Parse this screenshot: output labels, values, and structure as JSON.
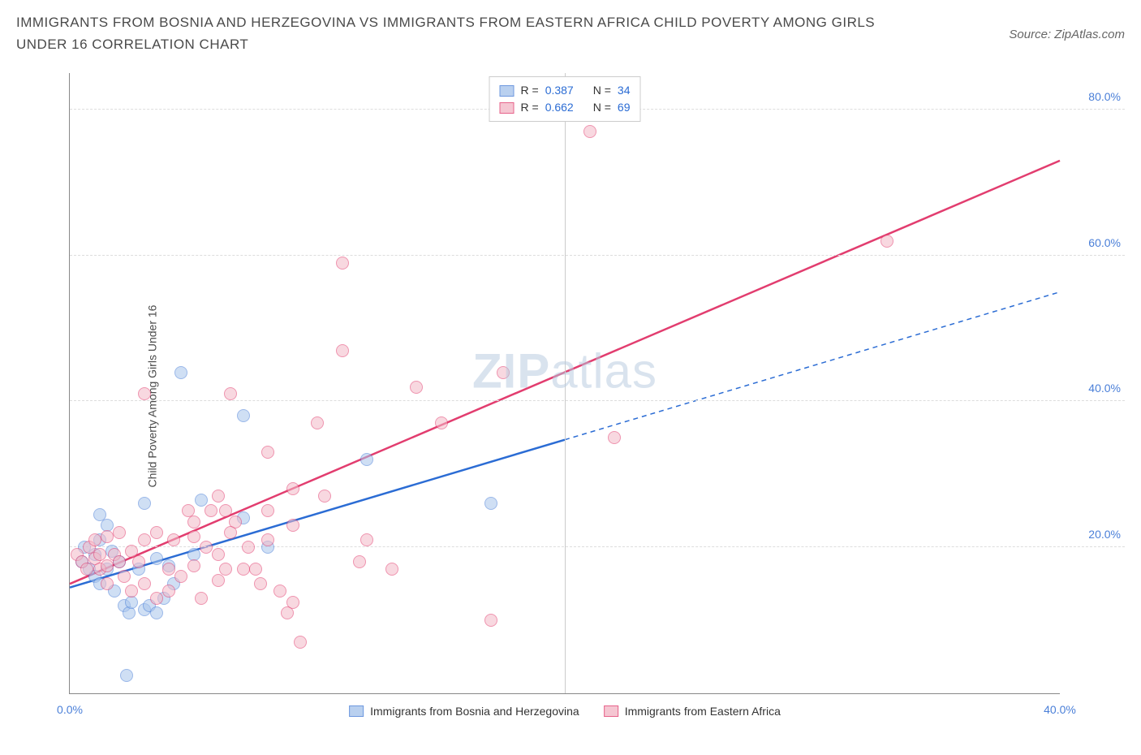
{
  "header": {
    "title": "IMMIGRANTS FROM BOSNIA AND HERZEGOVINA VS IMMIGRANTS FROM EASTERN AFRICA CHILD POVERTY AMONG GIRLS UNDER 16 CORRELATION CHART",
    "source_prefix": "Source: ",
    "source_name": "ZipAtlas.com"
  },
  "watermark": {
    "part1": "ZIP",
    "part2": "atlas"
  },
  "chart": {
    "type": "scatter",
    "y_axis_label": "Child Poverty Among Girls Under 16",
    "xlim": [
      0,
      40
    ],
    "ylim": [
      0,
      85
    ],
    "x_ticks": [
      0,
      40
    ],
    "x_tick_labels": [
      "0.0%",
      "40.0%"
    ],
    "x_gridlines": [
      20
    ],
    "y_ticks": [
      20,
      40,
      60,
      80
    ],
    "y_tick_labels": [
      "20.0%",
      "40.0%",
      "60.0%",
      "80.0%"
    ],
    "series": [
      {
        "name": "Immigrants from Bosnia and Herzegovina",
        "fill_color": "#a8c5ec",
        "fill_opacity": 0.55,
        "stroke_color": "#4a7fd8",
        "R": "0.387",
        "N": "34",
        "trend": {
          "color": "#2b6cd4",
          "width": 2.5,
          "solid_x_end": 20,
          "start": [
            0,
            14.5
          ],
          "end": [
            40,
            55
          ]
        },
        "points": [
          [
            0.5,
            18
          ],
          [
            0.8,
            17
          ],
          [
            0.6,
            20
          ],
          [
            1.0,
            16
          ],
          [
            1.0,
            19
          ],
          [
            1.2,
            21
          ],
          [
            1.2,
            15
          ],
          [
            1.5,
            17
          ],
          [
            1.5,
            23
          ],
          [
            1.8,
            14
          ],
          [
            1.2,
            24.5
          ],
          [
            2.0,
            18
          ],
          [
            2.2,
            12
          ],
          [
            2.4,
            11
          ],
          [
            2.5,
            12.5
          ],
          [
            3.0,
            11.5
          ],
          [
            3.2,
            12
          ],
          [
            3.5,
            11
          ],
          [
            3.8,
            13
          ],
          [
            4.2,
            15
          ],
          [
            3.0,
            26
          ],
          [
            4.5,
            44
          ],
          [
            5.0,
            19
          ],
          [
            5.3,
            26.5
          ],
          [
            7.0,
            24
          ],
          [
            7.0,
            38
          ],
          [
            8.0,
            20
          ],
          [
            12.0,
            32
          ],
          [
            17.0,
            26
          ],
          [
            2.3,
            2.5
          ],
          [
            1.7,
            19.5
          ],
          [
            2.8,
            17
          ],
          [
            3.5,
            18.5
          ],
          [
            4.0,
            17.5
          ]
        ]
      },
      {
        "name": "Immigrants from Eastern Africa",
        "fill_color": "#f3b9c7",
        "fill_opacity": 0.55,
        "stroke_color": "#e23d6f",
        "R": "0.662",
        "N": "69",
        "trend": {
          "color": "#e23d6f",
          "width": 2.5,
          "start": [
            0,
            15
          ],
          "end": [
            40,
            73
          ]
        },
        "points": [
          [
            0.3,
            19
          ],
          [
            0.5,
            18
          ],
          [
            0.7,
            17
          ],
          [
            0.8,
            20
          ],
          [
            1.0,
            18.5
          ],
          [
            1.0,
            21
          ],
          [
            1.2,
            19
          ],
          [
            1.2,
            17
          ],
          [
            1.5,
            17.5
          ],
          [
            1.5,
            15
          ],
          [
            1.5,
            21.5
          ],
          [
            1.8,
            19
          ],
          [
            2.0,
            18
          ],
          [
            2.0,
            22
          ],
          [
            2.2,
            16
          ],
          [
            2.5,
            19.5
          ],
          [
            2.5,
            14
          ],
          [
            2.8,
            18
          ],
          [
            3.0,
            15
          ],
          [
            3.0,
            21
          ],
          [
            3.0,
            41
          ],
          [
            3.5,
            22
          ],
          [
            3.5,
            13
          ],
          [
            4.0,
            17
          ],
          [
            4.0,
            14
          ],
          [
            4.2,
            21
          ],
          [
            4.5,
            16
          ],
          [
            5.0,
            17.5
          ],
          [
            5.0,
            21.5
          ],
          [
            5.0,
            23.5
          ],
          [
            5.3,
            13
          ],
          [
            5.7,
            25
          ],
          [
            6.0,
            19
          ],
          [
            6.0,
            15.5
          ],
          [
            6.0,
            27
          ],
          [
            6.3,
            17
          ],
          [
            6.3,
            25
          ],
          [
            6.5,
            41
          ],
          [
            6.7,
            23.5
          ],
          [
            7.0,
            17
          ],
          [
            7.5,
            17
          ],
          [
            7.7,
            15
          ],
          [
            8.0,
            21
          ],
          [
            8.0,
            25
          ],
          [
            8.0,
            33
          ],
          [
            8.5,
            14
          ],
          [
            8.8,
            11
          ],
          [
            9.0,
            12.5
          ],
          [
            9.0,
            23
          ],
          [
            9.0,
            28
          ],
          [
            9.3,
            7
          ],
          [
            10.0,
            37
          ],
          [
            10.3,
            27
          ],
          [
            11.0,
            47
          ],
          [
            11.0,
            59
          ],
          [
            11.7,
            18
          ],
          [
            12.0,
            21
          ],
          [
            13.0,
            17
          ],
          [
            14.0,
            42
          ],
          [
            15.0,
            37
          ],
          [
            17.5,
            44
          ],
          [
            17.0,
            10
          ],
          [
            21.0,
            77
          ],
          [
            22.0,
            35
          ],
          [
            33.0,
            62
          ],
          [
            4.8,
            25
          ],
          [
            5.5,
            20
          ],
          [
            7.2,
            20
          ],
          [
            6.5,
            22
          ]
        ]
      }
    ],
    "legend_top": {
      "r_label": "R =",
      "n_label": "N ="
    }
  }
}
